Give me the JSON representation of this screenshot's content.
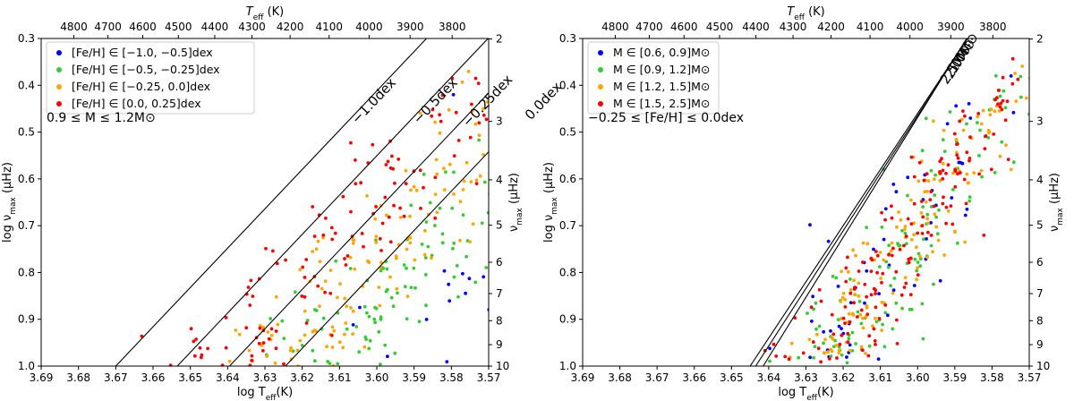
{
  "chart_data": [
    {
      "type": "scatter",
      "xlabel": "log T_eff(K)",
      "ylabel": "log ν_max (μHz)",
      "x2label": "T_eff (K)",
      "y2label": "ν_max (μHz)",
      "xlim": [
        3.69,
        3.57
      ],
      "ylim": [
        1.0,
        0.3
      ],
      "xticks": [
        "3.69",
        "3.68",
        "3.67",
        "3.66",
        "3.65",
        "3.64",
        "3.63",
        "3.62",
        "3.61",
        "3.60",
        "3.59",
        "3.58",
        "3.57"
      ],
      "yticks": [
        "0.3",
        "0.4",
        "0.5",
        "0.6",
        "0.7",
        "0.8",
        "0.9",
        "1.0"
      ],
      "top_ticks": [
        "4800",
        "4700",
        "4600",
        "4500",
        "4400",
        "4300",
        "4200",
        "4100",
        "4000",
        "3900",
        "3800"
      ],
      "right_ticks": [
        "2",
        "3",
        "4",
        "5",
        "6",
        "7",
        "8",
        "9",
        "10"
      ],
      "legend_position": "top-left",
      "annotation": "0.9 ≤ M ≤ 1.2M⊙",
      "series": [
        {
          "name": "[Fe/H] ∈ [−1.0, −0.5]dex",
          "color": "#0000ff"
        },
        {
          "name": "[Fe/H] ∈ [−0.5, −0.25]dex",
          "color": "#33cc33"
        },
        {
          "name": "[Fe/H] ∈ [−0.25, 0.0]dex",
          "color": "#ffa500"
        },
        {
          "name": "[Fe/H] ∈ [0.0, 0.25]dex",
          "color": "#ff0000"
        }
      ],
      "lines": [
        {
          "label": "−1.0dex",
          "x_at_y1": 3.67,
          "slope": 8.4
        },
        {
          "label": "−0.5dex",
          "x_at_y1": 3.6535,
          "slope": 8.4
        },
        {
          "label": "−0.25dex",
          "x_at_y1": 3.6395,
          "slope": 8.4
        },
        {
          "label": "0.0dex",
          "x_at_y1": 3.6245,
          "slope": 8.4
        }
      ]
    },
    {
      "type": "scatter",
      "xlabel": "log T_eff(K)",
      "ylabel": "log ν_max (μHz)",
      "x2label": "T_eff (K)",
      "y2label": "ν_max (μHz)",
      "xlim": [
        3.69,
        3.57
      ],
      "ylim": [
        1.0,
        0.3
      ],
      "xticks": [
        "3.69",
        "3.68",
        "3.67",
        "3.66",
        "3.65",
        "3.64",
        "3.63",
        "3.62",
        "3.61",
        "3.60",
        "3.59",
        "3.58",
        "3.57"
      ],
      "yticks": [
        "0.3",
        "0.4",
        "0.5",
        "0.6",
        "0.7",
        "0.8",
        "0.9",
        "1.0"
      ],
      "top_ticks": [
        "4800",
        "4700",
        "4600",
        "4500",
        "4400",
        "4300",
        "4200",
        "4100",
        "4000",
        "3900",
        "3800"
      ],
      "right_ticks": [
        "2",
        "3",
        "4",
        "5",
        "6",
        "7",
        "8",
        "9",
        "10"
      ],
      "legend_position": "top-left",
      "annotation": "−0.25 ≤ [Fe/H] ≤ 0.0dex",
      "series": [
        {
          "name": "M ∈ [0.6, 0.9]M⊙",
          "color": "#0000ff"
        },
        {
          "name": "M ∈ [0.9, 1.2]M⊙",
          "color": "#33cc33"
        },
        {
          "name": "M ∈ [1.2, 1.5]M⊙",
          "color": "#ffa500"
        },
        {
          "name": "M ∈ [1.5, 2.5]M⊙",
          "color": "#ff0000"
        }
      ],
      "lines": [
        {
          "label": "2.5M⊙",
          "x_at_y1": 3.645,
          "slope": 12.0
        },
        {
          "label": "2.0M⊙",
          "x_at_y1": 3.6435,
          "slope": 12.3
        },
        {
          "label": "1.0M⊙",
          "x_at_y1": 3.6415,
          "slope": 12.8
        }
      ]
    }
  ]
}
